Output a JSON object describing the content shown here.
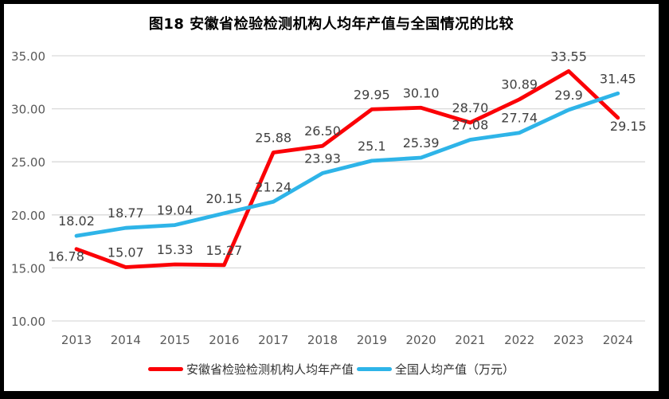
{
  "colors": {
    "series_red": "#FB0006",
    "series_blue": "#2EB4E8",
    "gridline": "#D9D9D9",
    "axis_text": "#595959",
    "label_text": "#404040",
    "title_text": "#000000",
    "frame_border": "#000000"
  },
  "chart_data": {
    "type": "line",
    "title": "图18 安徽省检验检测机构人均年产值与全国情况的比较",
    "categories": [
      "2013",
      "2014",
      "2015",
      "2016",
      "2017",
      "2018",
      "2019",
      "2020",
      "2021",
      "2022",
      "2023",
      "2024"
    ],
    "xlabel": "",
    "ylabel": "",
    "ylim": [
      10,
      35
    ],
    "grid": "horizontal",
    "legend_position": "bottom",
    "y_ticks": [
      {
        "label": "10.00",
        "value": 10
      },
      {
        "label": "15.00",
        "value": 15
      },
      {
        "label": "20.00",
        "value": 20
      },
      {
        "label": "25.00",
        "value": 25
      },
      {
        "label": "30.00",
        "value": 30
      },
      {
        "label": "35.00",
        "value": 35
      }
    ],
    "series": [
      {
        "name": "安徽省检验检测机构人均年产值",
        "color": "#FB0006",
        "values": [
          16.78,
          15.07,
          15.33,
          15.27,
          25.88,
          26.5,
          29.95,
          30.1,
          28.7,
          30.89,
          33.55,
          29.15
        ],
        "labels": [
          "16.78",
          "15.07",
          "15.33",
          "15.27",
          "25.88",
          "26.50",
          "29.95",
          "30.10",
          "28.70",
          "30.89",
          "33.55",
          "29.15"
        ],
        "label_pos": [
          "below-left",
          "above",
          "above",
          "above",
          "above",
          "above",
          "above",
          "above",
          "above",
          "above",
          "above",
          "below-right"
        ]
      },
      {
        "name": "全国人均产值（万元）",
        "color": "#2EB4E8",
        "values": [
          18.02,
          18.77,
          19.04,
          20.15,
          21.24,
          23.93,
          25.1,
          25.39,
          27.08,
          27.74,
          29.9,
          31.45
        ],
        "labels": [
          "18.02",
          "18.77",
          "19.04",
          "20.15",
          "21.24",
          "23.93",
          "25.1",
          "25.39",
          "27.08",
          "27.74",
          "29.9",
          "31.45"
        ],
        "label_pos": [
          "above",
          "above",
          "above",
          "above",
          "above",
          "above",
          "above",
          "above",
          "above",
          "above",
          "above",
          "above"
        ]
      }
    ]
  }
}
